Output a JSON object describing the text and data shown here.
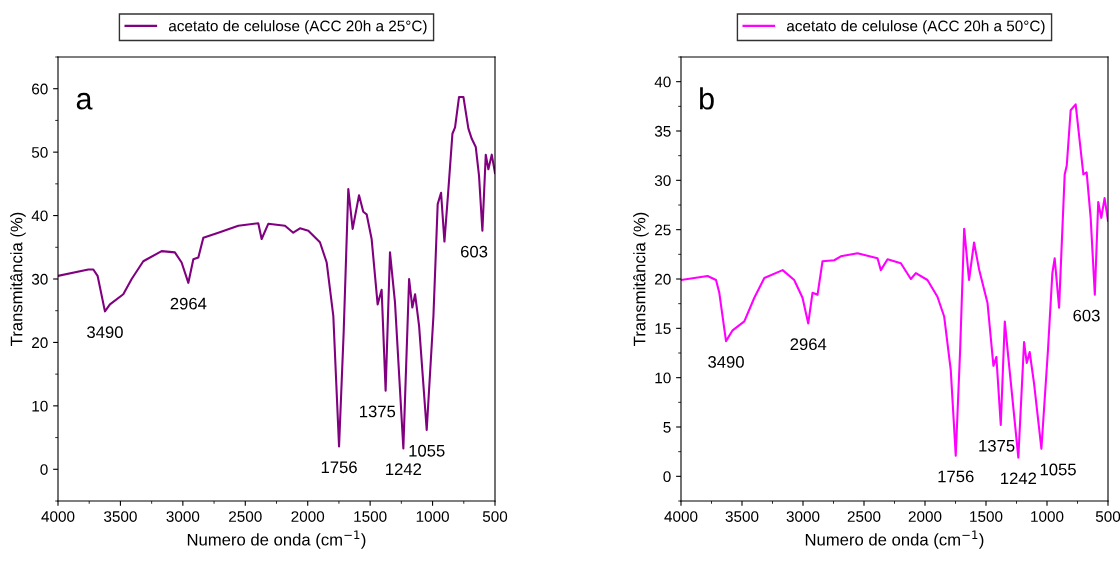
{
  "chart_data": [
    {
      "type": "line",
      "xlabel": "Numero de onda (cm$^{−1}$)",
      "ylabel": "Transmitância (%)",
      "legend": "top",
      "grid": false,
      "marker": "none",
      "line_style": "solid",
      "xlim": [
        4000,
        500
      ],
      "xticks": [
        4000,
        3500,
        3000,
        2500,
        2000,
        1500,
        1000,
        500
      ],
      "ylim": [
        -5,
        65
      ],
      "yticks": [
        0,
        10,
        20,
        30,
        40,
        50,
        60
      ],
      "annotations": [
        "a",
        {
          "text": "3490",
          "x": 3624,
          "y": 24.9
        },
        {
          "text": "2964",
          "x": 2956,
          "y": 29.4
        },
        {
          "text": "1756",
          "x": 1749,
          "y": 3.6
        },
        {
          "text": "1375",
          "x": 1376,
          "y": 12.4
        },
        {
          "text": "1242",
          "x": 1234,
          "y": 3.3
        },
        {
          "text": "1055",
          "x": 1047,
          "y": 6.2
        },
        {
          "text": "603",
          "x": 601,
          "y": 37.6
        }
      ],
      "series": [
        {
          "name": "acetato de celulose (ACC 20h a 25°C)",
          "color": "#800080",
          "x": [
            4000,
            3757,
            3717,
            3683,
            3624,
            3584,
            3477,
            3410,
            3317,
            3170,
            3064,
            3010,
            2956,
            2916,
            2876,
            2836,
            2716,
            2556,
            2396,
            2369,
            2316,
            2182,
            2116,
            2062,
            1995,
            1902,
            1848,
            1795,
            1749,
            1712,
            1675,
            1640,
            1589,
            1555,
            1528,
            1488,
            1440,
            1408,
            1376,
            1341,
            1301,
            1234,
            1188,
            1162,
            1140,
            1108,
            1047,
            993,
            959,
            932,
            905,
            873,
            841,
            820,
            788,
            753,
            713,
            686,
            654,
            628,
            601,
            574,
            553,
            526,
            500
          ],
          "values": [
            30.5,
            31.5,
            31.5,
            30.5,
            24.9,
            26.0,
            27.6,
            30.0,
            32.8,
            34.4,
            34.2,
            32.6,
            29.4,
            33.1,
            33.4,
            36.5,
            37.3,
            38.4,
            38.8,
            36.3,
            38.7,
            38.4,
            37.3,
            38.0,
            37.6,
            35.8,
            32.6,
            24.2,
            3.6,
            21.6,
            44.2,
            37.9,
            43.2,
            40.6,
            40.2,
            36.3,
            26.0,
            28.3,
            12.4,
            34.2,
            26.3,
            3.3,
            30.0,
            25.5,
            27.6,
            22.6,
            6.2,
            24.2,
            41.8,
            43.6,
            35.9,
            44.2,
            52.9,
            53.9,
            58.7,
            58.7,
            53.7,
            52.1,
            50.8,
            46.3,
            37.6,
            49.6,
            47.3,
            49.6,
            46.7
          ]
        }
      ]
    },
    {
      "type": "line",
      "xlabel": "Numero de onda (cm$^{−1}$)",
      "ylabel": "Transmitância (%)",
      "legend": "top",
      "grid": false,
      "marker": "none",
      "line_style": "solid",
      "xlim": [
        4000,
        500
      ],
      "xticks": [
        4000,
        3500,
        3000,
        2500,
        2000,
        1500,
        1000,
        500
      ],
      "ylim": [
        -2.5,
        42.5
      ],
      "yticks": [
        0,
        5,
        10,
        15,
        20,
        25,
        30,
        35,
        40
      ],
      "annotations": [
        "b",
        {
          "text": "3490",
          "x": 3631,
          "y": 13.7
        },
        {
          "text": "2964",
          "x": 2957,
          "y": 15.5
        },
        {
          "text": "1756",
          "x": 1748,
          "y": 2.1
        },
        {
          "text": "1375",
          "x": 1379,
          "y": 5.2
        },
        {
          "text": "1242",
          "x": 1235,
          "y": 1.9
        },
        {
          "text": "1055",
          "x": 1046,
          "y": 2.8
        },
        {
          "text": "603",
          "x": 608,
          "y": 18.4
        }
      ],
      "series": [
        {
          "name": "acetato de celulose (ACC 20h a 50°C)",
          "color": "#ff00ff",
          "x": [
            4000,
            3782,
            3713,
            3686,
            3631,
            3577,
            3481,
            3399,
            3317,
            3167,
            3072,
            3004,
            2957,
            2922,
            2881,
            2840,
            2744,
            2690,
            2553,
            2389,
            2362,
            2307,
            2198,
            2116,
            2075,
            1980,
            1898,
            1843,
            1789,
            1748,
            1712,
            1679,
            1639,
            1598,
            1557,
            1488,
            1439,
            1415,
            1379,
            1346,
            1311,
            1235,
            1188,
            1166,
            1142,
            1106,
            1046,
            992,
            956,
            937,
            901,
            855,
            838,
            806,
            765,
            702,
            675,
            642,
            608,
            580,
            555,
            528,
            500
          ],
          "values": [
            19.9,
            20.3,
            19.9,
            18.6,
            13.7,
            14.8,
            15.7,
            18.1,
            20.1,
            20.9,
            19.9,
            18.1,
            15.5,
            18.6,
            18.4,
            21.8,
            21.9,
            22.3,
            22.6,
            22.1,
            20.9,
            22.0,
            21.6,
            20.0,
            20.6,
            19.9,
            18.2,
            16.2,
            10.8,
            2.1,
            12.8,
            25.1,
            19.9,
            23.7,
            21.0,
            17.6,
            11.2,
            12.1,
            5.2,
            15.7,
            11.3,
            1.9,
            13.6,
            11.5,
            12.6,
            9.4,
            2.8,
            12.8,
            20.6,
            22.1,
            17.1,
            30.6,
            31.5,
            37.1,
            37.7,
            30.6,
            30.8,
            26.2,
            18.4,
            27.8,
            26.2,
            28.2,
            25.9
          ]
        }
      ]
    }
  ]
}
